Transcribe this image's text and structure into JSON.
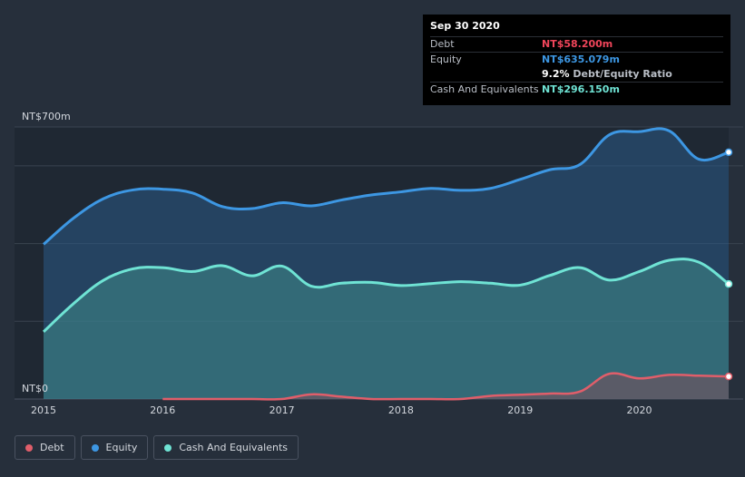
{
  "tooltip": {
    "date": "Sep 30 2020",
    "debt_label": "Debt",
    "debt_value": "NT$58.200m",
    "equity_label": "Equity",
    "equity_value": "NT$635.079m",
    "ratio_pct": "9.2%",
    "ratio_label": "Debt/Equity Ratio",
    "cash_label": "Cash And Equivalents",
    "cash_value": "NT$296.150m"
  },
  "colors": {
    "debt": "#e05e6a",
    "equity": "#3d97e3",
    "cash": "#6fe3d4",
    "background": "#262f3b"
  },
  "legend": [
    {
      "name": "Debt",
      "color": "#e05e6a"
    },
    {
      "name": "Equity",
      "color": "#3d97e3"
    },
    {
      "name": "Cash And Equivalents",
      "color": "#6fe3d4"
    }
  ],
  "chart_data": {
    "type": "area",
    "y_top_label": "NT$700m",
    "y_bottom_label": "NT$0",
    "ylim": [
      0,
      700
    ],
    "xlim": [
      2015,
      2020.75
    ],
    "x_ticks": [
      "2015",
      "2016",
      "2017",
      "2018",
      "2019",
      "2020"
    ],
    "grid": true,
    "series": [
      {
        "name": "Equity",
        "x": [
          2015,
          2015.25,
          2015.5,
          2015.75,
          2016,
          2016.25,
          2016.5,
          2016.75,
          2017,
          2017.25,
          2017.5,
          2017.75,
          2018,
          2018.25,
          2018.5,
          2018.75,
          2019,
          2019.25,
          2019.5,
          2019.75,
          2020,
          2020.25,
          2020.5,
          2020.75
        ],
        "y": [
          398,
          465,
          515,
          538,
          540,
          530,
          495,
          490,
          505,
          497,
          512,
          525,
          533,
          542,
          537,
          542,
          565,
          590,
          603,
          680,
          688,
          690,
          617,
          635
        ]
      },
      {
        "name": "Cash And Equivalents",
        "x": [
          2015,
          2015.25,
          2015.5,
          2015.75,
          2016,
          2016.25,
          2016.5,
          2016.75,
          2017,
          2017.25,
          2017.5,
          2017.75,
          2018,
          2018.25,
          2018.5,
          2018.75,
          2019,
          2019.25,
          2019.5,
          2019.75,
          2020,
          2020.25,
          2020.5,
          2020.75
        ],
        "y": [
          173,
          245,
          305,
          335,
          338,
          328,
          343,
          317,
          342,
          290,
          298,
          300,
          292,
          297,
          302,
          298,
          293,
          318,
          338,
          306,
          328,
          357,
          352,
          296
        ]
      },
      {
        "name": "Debt",
        "x": [
          2016,
          2016.25,
          2016.5,
          2016.75,
          2017,
          2017.25,
          2017.5,
          2017.75,
          2018,
          2018.25,
          2018.5,
          2018.75,
          2019,
          2019.25,
          2019.5,
          2019.75,
          2020,
          2020.25,
          2020.5,
          2020.75
        ],
        "y": [
          0,
          0,
          0,
          0,
          0,
          12,
          6,
          0,
          0,
          0,
          0,
          8,
          11,
          14,
          19,
          65,
          53,
          62,
          60,
          58
        ]
      }
    ]
  }
}
